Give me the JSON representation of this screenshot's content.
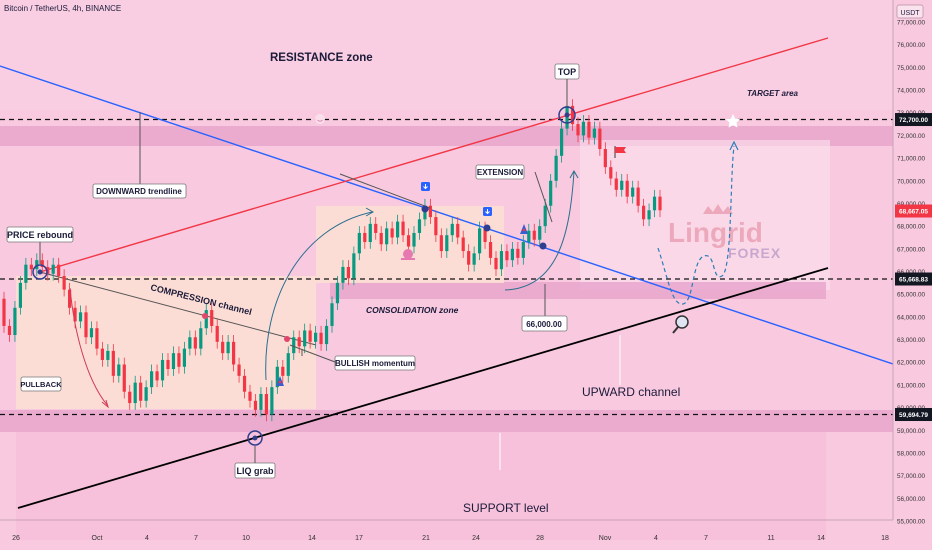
{
  "header": {
    "symbol": "Bitcoin / TetherUS, 4h, BINANCE"
  },
  "currency": "USDT",
  "watermark": {
    "brand": "Lingrid",
    "sub": "FOREX"
  },
  "colors": {
    "background": "#f8c9df",
    "zone": "#e7a6cc",
    "box": "#fde0d4",
    "up": "#089981",
    "down": "#f23645",
    "downTrend": "#2962ff",
    "upperLine": "#f23645",
    "lowerLine": "#000000",
    "annotation": "#5b6fcf"
  },
  "chart_data": {
    "type": "candlestick",
    "title": "Bitcoin / TetherUS, 4h, BINANCE",
    "ylim": [
      55000,
      78000
    ],
    "yticks": [
      55000,
      56000,
      57000,
      58000,
      59000,
      60000,
      61000,
      62000,
      63000,
      64000,
      65000,
      66000,
      67000,
      68000,
      69000,
      70000,
      71000,
      72000,
      73000,
      74000,
      75000,
      76000,
      77000
    ],
    "ytick_labels": [
      "55,000.00",
      "56,000.00",
      "57,000.00",
      "58,000.00",
      "59,000.00",
      "60,000.00",
      "61,000.00",
      "62,000.00",
      "63,000.00",
      "64,000.00",
      "65,000.00",
      "66,000.00",
      "67,000.00",
      "68,000.00",
      "69,000.00",
      "70,000.00",
      "71,000.00",
      "72,000.00",
      "73,000.00",
      "74,000.00",
      "75,000.00",
      "76,000.00",
      "77,000.00"
    ],
    "xtick_labels": [
      "26",
      "Oct",
      "4",
      "7",
      "10",
      "14",
      "17",
      "21",
      "24",
      "28",
      "Nov",
      "4",
      "7",
      "11",
      "14",
      "18"
    ],
    "price_tags": [
      {
        "label": "72,700.00",
        "value": 72700,
        "style": "dark"
      },
      {
        "label": "68,667.05",
        "value": 68667,
        "style": "current"
      },
      {
        "label": "65,668.83",
        "value": 65669,
        "style": "dark"
      },
      {
        "label": "59,694.79",
        "value": 59695,
        "style": "dark"
      }
    ],
    "levels": [
      72700,
      65669,
      59695
    ],
    "annotations": {
      "resistance": "RESISTANCE zone",
      "top": "TOP",
      "target": "TARGET area",
      "downward": "DOWNWARD trendline",
      "price_rebound": "PRICE rebound",
      "compression": "COMPRESSION channel",
      "pullback": "PULLBACK",
      "bullish": "BULLISH momentum",
      "consolidation": "CONSOLIDATION zone",
      "extension": "EXTENSION",
      "level_66k": "66,000.00",
      "upward": "UPWARD channel",
      "liq": "LIQ grab",
      "support": "SUPPORT level"
    },
    "candles": [
      [
        64800,
        63600
      ],
      [
        63600,
        63200
      ],
      [
        63200,
        64400
      ],
      [
        64400,
        65500
      ],
      [
        65500,
        66300
      ],
      [
        66300,
        66100
      ],
      [
        66100,
        66500
      ],
      [
        66500,
        66200
      ],
      [
        66200,
        65900
      ],
      [
        65900,
        66300
      ],
      [
        66300,
        65800
      ],
      [
        65800,
        65200
      ],
      [
        65200,
        64400
      ],
      [
        64400,
        63800
      ],
      [
        63800,
        64200
      ],
      [
        64200,
        63100
      ],
      [
        63100,
        63500
      ],
      [
        63500,
        62600
      ],
      [
        62600,
        62100
      ],
      [
        62100,
        62500
      ],
      [
        62500,
        61400
      ],
      [
        61400,
        61900
      ],
      [
        61900,
        60700
      ],
      [
        60700,
        60200
      ],
      [
        60200,
        61100
      ],
      [
        61100,
        60300
      ],
      [
        60300,
        60900
      ],
      [
        60900,
        61600
      ],
      [
        61600,
        61200
      ],
      [
        61200,
        62100
      ],
      [
        62100,
        61700
      ],
      [
        61700,
        62400
      ],
      [
        62400,
        61800
      ],
      [
        61800,
        62600
      ],
      [
        62600,
        63100
      ],
      [
        63100,
        62600
      ],
      [
        62600,
        63500
      ],
      [
        63500,
        64300
      ],
      [
        64300,
        63600
      ],
      [
        63600,
        62900
      ],
      [
        62900,
        62400
      ],
      [
        62400,
        62900
      ],
      [
        62900,
        61900
      ],
      [
        61900,
        61400
      ],
      [
        61400,
        60700
      ],
      [
        60700,
        60300
      ],
      [
        60300,
        59900
      ],
      [
        59900,
        60600
      ],
      [
        60600,
        59700
      ],
      [
        59700,
        60900
      ],
      [
        60900,
        61800
      ],
      [
        61800,
        61400
      ],
      [
        61400,
        62400
      ],
      [
        62400,
        63100
      ],
      [
        63100,
        62700
      ],
      [
        62700,
        63400
      ],
      [
        63400,
        62900
      ],
      [
        62900,
        63300
      ],
      [
        63300,
        62800
      ],
      [
        62800,
        63600
      ],
      [
        63600,
        64600
      ],
      [
        64600,
        65500
      ],
      [
        65500,
        66200
      ],
      [
        66200,
        65700
      ],
      [
        65700,
        66800
      ],
      [
        66800,
        67700
      ],
      [
        67700,
        67300
      ],
      [
        67300,
        68100
      ],
      [
        68100,
        67700
      ],
      [
        67700,
        67200
      ],
      [
        67200,
        67900
      ],
      [
        67900,
        67500
      ],
      [
        67500,
        68200
      ],
      [
        68200,
        67600
      ],
      [
        67600,
        67100
      ],
      [
        67100,
        67700
      ],
      [
        67700,
        68300
      ],
      [
        68300,
        68900
      ],
      [
        68900,
        68400
      ],
      [
        68400,
        67600
      ],
      [
        67600,
        66900
      ],
      [
        66900,
        67600
      ],
      [
        67600,
        68100
      ],
      [
        68100,
        67500
      ],
      [
        67500,
        66900
      ],
      [
        66900,
        66300
      ],
      [
        66300,
        66800
      ],
      [
        66800,
        67900
      ],
      [
        67900,
        67300
      ],
      [
        67300,
        66600
      ],
      [
        66600,
        66100
      ],
      [
        66100,
        66900
      ],
      [
        66900,
        66500
      ],
      [
        66500,
        67000
      ],
      [
        67000,
        66600
      ],
      [
        66600,
        67300
      ],
      [
        67300,
        67800
      ],
      [
        67800,
        67400
      ],
      [
        67400,
        68000
      ],
      [
        68000,
        68900
      ],
      [
        68900,
        70000
      ],
      [
        70000,
        71100
      ],
      [
        71100,
        72300
      ],
      [
        72300,
        73300
      ],
      [
        73300,
        72500
      ],
      [
        72500,
        72000
      ],
      [
        72000,
        72600
      ],
      [
        72600,
        71900
      ],
      [
        71900,
        72300
      ],
      [
        72300,
        71400
      ],
      [
        71400,
        70600
      ],
      [
        70600,
        70100
      ],
      [
        70100,
        69600
      ],
      [
        69600,
        70000
      ],
      [
        70000,
        69300
      ],
      [
        69300,
        69700
      ],
      [
        69700,
        68900
      ],
      [
        68900,
        68300
      ],
      [
        68300,
        68700
      ],
      [
        68700,
        69300
      ],
      [
        69300,
        68700
      ]
    ]
  }
}
